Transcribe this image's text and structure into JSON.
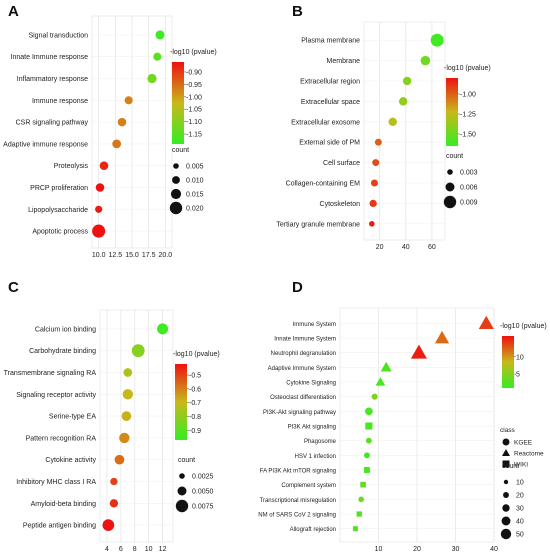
{
  "chart_data": [
    {
      "panel_label": "A",
      "type": "scatter",
      "categories": [
        "Signal transduction",
        "Innate Immune response",
        "Inflammatory response",
        "Immune response",
        "CSR signaling pathway",
        "Adaptive immune response",
        "Proteolysis",
        "PRCP proliferation",
        "Lipopolysaccharide",
        "Apoptotic process"
      ],
      "x": [
        19.2,
        18.8,
        18.0,
        14.5,
        13.5,
        12.7,
        10.8,
        10.2,
        10.0,
        10.0
      ],
      "count": [
        0.0125,
        0.0105,
        0.013,
        0.0105,
        0.0115,
        0.012,
        0.0115,
        0.0115,
        0.0085,
        0.0215
      ],
      "log10p": [
        -1.18,
        -1.15,
        -1.12,
        -0.97,
        -0.97,
        -0.96,
        -0.88,
        -0.86,
        -0.87,
        -0.84
      ],
      "xlim": [
        9.0,
        21.0
      ],
      "xticks": [
        "10.0",
        "12.5",
        "15.0",
        "17.5",
        "20.0"
      ],
      "xtick_values": [
        10.0,
        12.5,
        15.0,
        17.5,
        20.0
      ],
      "color_legend": {
        "title": "-log10 (pvalue)",
        "ticks": [
          "-0.90",
          "-0.95",
          "-1.00",
          "-1.05",
          "-1.10",
          "-1.15"
        ],
        "tick_values": [
          -0.9,
          -0.95,
          -1.0,
          -1.05,
          -1.1,
          -1.15
        ],
        "range": [
          -1.19,
          -0.86
        ]
      },
      "size_legend": {
        "title": "count",
        "labels": [
          "0.005",
          "0.010",
          "0.015",
          "0.020"
        ],
        "values": [
          0.005,
          0.01,
          0.015,
          0.02
        ]
      }
    },
    {
      "panel_label": "B",
      "type": "scatter",
      "categories": [
        "Plasma membrane",
        "Membrane",
        "Extracellular region",
        "Extracellular space",
        "Extracellular exosome",
        "External side of PM",
        "Cell surface",
        "Collagen-containing EM",
        "Cytoskeleton",
        "Tertiary granule membrane"
      ],
      "x": [
        64,
        55,
        41,
        38,
        30,
        19,
        17,
        16,
        15,
        14
      ],
      "count": [
        0.0095,
        0.0065,
        0.0055,
        0.0055,
        0.0055,
        0.0042,
        0.0042,
        0.0042,
        0.0045,
        0.003
      ],
      "log10p": [
        -1.62,
        -1.48,
        -1.42,
        -1.38,
        -1.28,
        -1.0,
        -0.95,
        -0.92,
        -0.9,
        -0.82
      ],
      "xlim": [
        8,
        70
      ],
      "xticks": [
        "20",
        "40",
        "60"
      ],
      "xtick_values": [
        20,
        40,
        60
      ],
      "color_legend": {
        "title": "-log10 (pvalue)",
        "ticks": [
          "-1.00",
          "-1.25",
          "-1.50"
        ],
        "tick_values": [
          -1.0,
          -1.25,
          -1.5
        ],
        "range": [
          -1.65,
          -0.8
        ]
      },
      "size_legend": {
        "title": "count",
        "labels": [
          "0.003",
          "0.006",
          "0.009"
        ],
        "values": [
          0.003,
          0.006,
          0.009
        ]
      }
    },
    {
      "panel_label": "C",
      "type": "scatter",
      "categories": [
        "Calcium ion binding",
        "Carbohydrate binding",
        "Transmembrane signaling RA",
        "Signaling receptor activity",
        "Serine-type EA",
        "Pattern recognition RA",
        "Cytokine activity",
        "Inhibitory MHC class I RA",
        "Amyloid-beta binding",
        "Peptide antigen binding"
      ],
      "x": [
        12.0,
        8.5,
        7.0,
        7.0,
        6.8,
        6.5,
        5.8,
        5.0,
        5.0,
        4.2
      ],
      "count": [
        0.0065,
        0.0078,
        0.0048,
        0.006,
        0.0055,
        0.006,
        0.0055,
        0.0038,
        0.0045,
        0.007
      ],
      "log10p": [
        -0.95,
        -0.82,
        -0.74,
        -0.7,
        -0.68,
        -0.62,
        -0.57,
        -0.5,
        -0.47,
        -0.42
      ],
      "xlim": [
        3,
        13.5
      ],
      "xticks": [
        "4",
        "6",
        "8",
        "10",
        "12"
      ],
      "xtick_values": [
        4,
        6,
        8,
        10,
        12
      ],
      "color_legend": {
        "title": "-log10 (pvalue)",
        "ticks": [
          "-0.5",
          "-0.6",
          "-0.7",
          "-0.8",
          "-0.9"
        ],
        "tick_values": [
          -0.5,
          -0.6,
          -0.7,
          -0.8,
          -0.9
        ],
        "range": [
          -0.97,
          -0.42
        ]
      },
      "size_legend": {
        "title": "count",
        "labels": [
          "0.0025",
          "0.0050",
          "0.0075"
        ],
        "values": [
          0.0025,
          0.005,
          0.0075
        ]
      }
    },
    {
      "panel_label": "D",
      "type": "scatter",
      "categories": [
        "Immune System",
        "Innate Immune System",
        "Neutrophil degranulation",
        "Adaptive Immune System",
        "Cytokine Signaling",
        "Osteoclast differentiation",
        "PI3K-Akt signaling pathway",
        "PI3K Akt signaling",
        "Phagosome",
        "HSV 1 infection",
        "FA PI3K Akt mTOR signaling",
        "Complement system",
        "Transcriptional misregulation",
        "NM of SARS CoV 2 signaling",
        "Allograft rejection"
      ],
      "x": [
        38,
        26.5,
        20.5,
        12.0,
        10.5,
        9.0,
        7.5,
        7.5,
        7.5,
        7.0,
        7.0,
        6.0,
        5.5,
        5.0,
        4.0
      ],
      "count": [
        48,
        44,
        52,
        30,
        24,
        22,
        32,
        28,
        20,
        20,
        20,
        18,
        18,
        16,
        14
      ],
      "log10p": [
        14,
        12,
        15.5,
        2.5,
        2.0,
        5.0,
        2.0,
        2.0,
        3.0,
        1.5,
        2.0,
        3.5,
        3.5,
        2.5,
        2.5
      ],
      "class": [
        "Reactome",
        "Reactome",
        "Reactome",
        "Reactome",
        "Reactome",
        "KGEE",
        "KGEE",
        "WIKI",
        "KGEE",
        "KGEE",
        "WIKI",
        "WIKI",
        "KGEE",
        "WIKI",
        "WIKI"
      ],
      "xlim": [
        0,
        40
      ],
      "xticks": [
        "10",
        "20",
        "30",
        "40"
      ],
      "xtick_values": [
        10,
        20,
        30,
        40
      ],
      "color_legend": {
        "title": "-log10 (pvalue)",
        "ticks": [
          "10",
          "5"
        ],
        "tick_values": [
          10,
          5
        ],
        "range": [
          1,
          16
        ]
      },
      "class_legend": {
        "title": "class",
        "items": [
          "KGEE",
          "Reactome",
          "WIKI"
        ]
      },
      "size_legend": {
        "title": "count",
        "labels": [
          "10",
          "20",
          "30",
          "40",
          "50"
        ],
        "values": [
          10,
          20,
          30,
          40,
          50
        ]
      }
    }
  ],
  "colors": {
    "low": "#33ee22",
    "mid": "#c8b81a",
    "high": "#ee1111",
    "grid": "#e6e6e6"
  }
}
